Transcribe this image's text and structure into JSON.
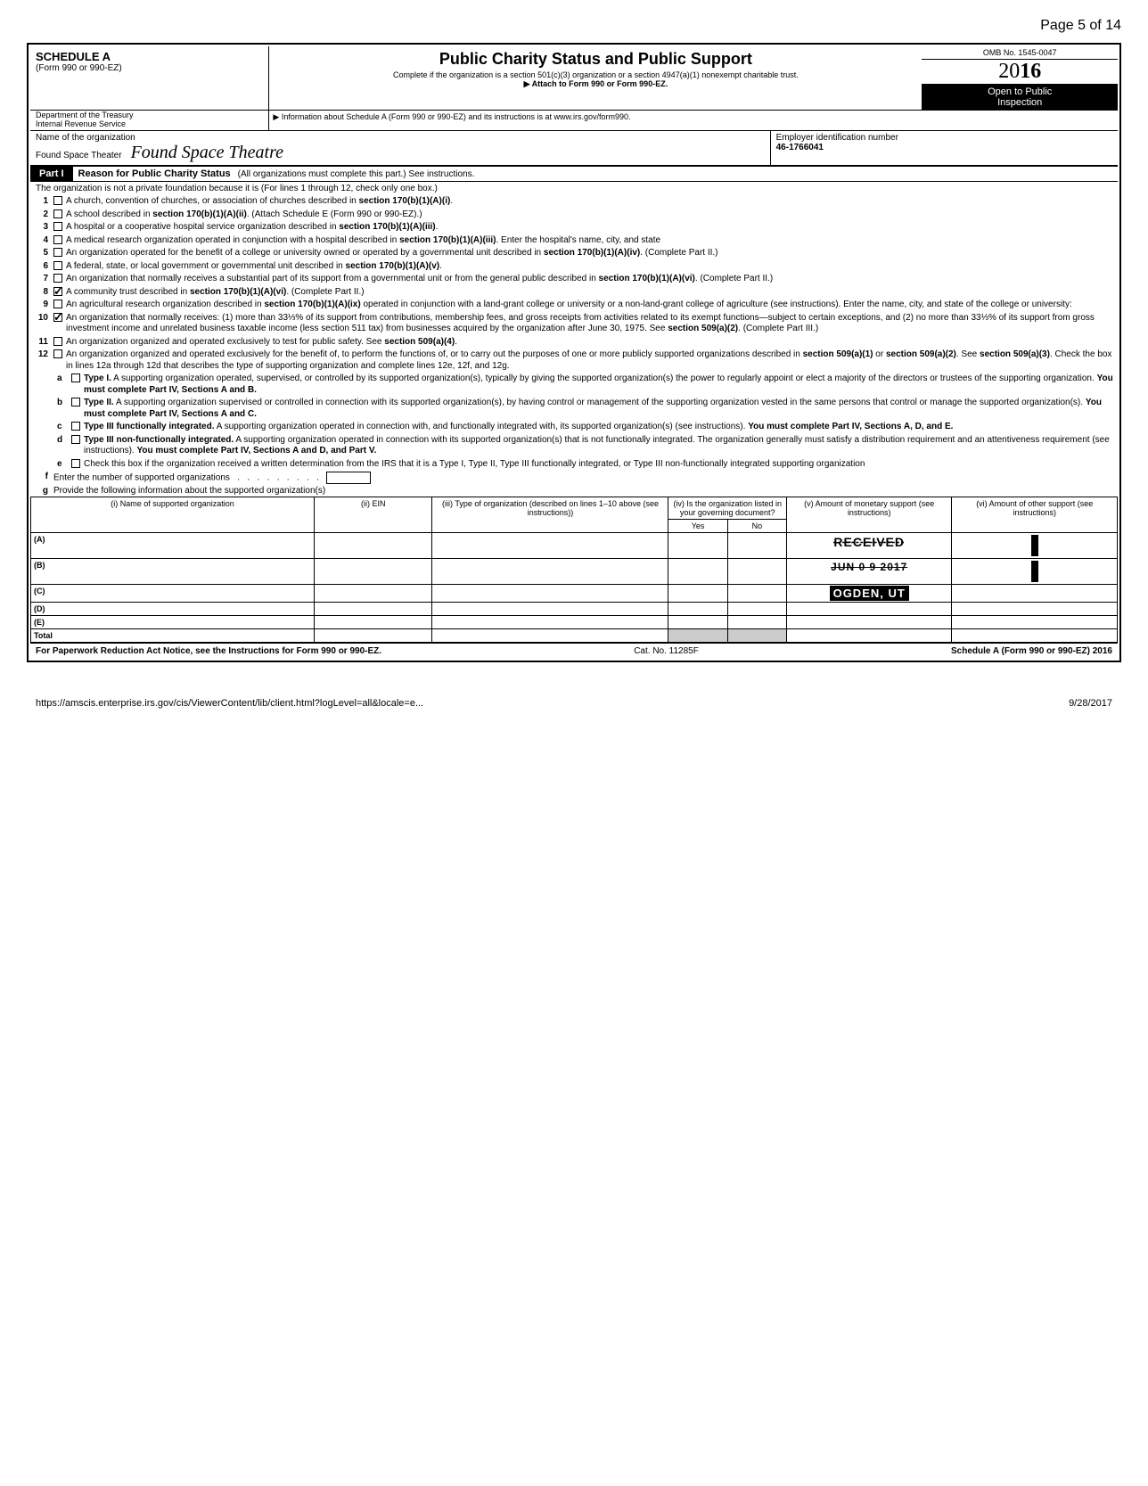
{
  "page_header": "Page 5 of 14",
  "form": {
    "schedule": "SCHEDULE A",
    "form_ref": "(Form 990 or 990-EZ)",
    "dept": "Department of the Treasury",
    "irs": "Internal Revenue Service",
    "title": "Public Charity Status and Public Support",
    "subtitle": "Complete if the organization is a section 501(c)(3) organization or a section 4947(a)(1) nonexempt charitable trust.",
    "attach": "▶ Attach to Form 990 or Form 990-EZ.",
    "info": "▶ Information about Schedule A (Form 990 or 990-EZ) and its instructions is at www.irs.gov/form990.",
    "omb": "OMB No. 1545-0047",
    "year_prefix": "20",
    "year_suffix": "16",
    "open": "Open to Public",
    "inspection": "Inspection"
  },
  "org": {
    "name_label": "Name of the organization",
    "name": "Found Space Theater",
    "handwritten": "Found Space Theatre",
    "ein_label": "Employer identification number",
    "ein": "46-1766041"
  },
  "part1": {
    "badge": "Part I",
    "title": "Reason for Public Charity Status",
    "sub": "(All organizations must complete this part.) See instructions.",
    "intro": "The organization is not a private foundation because it is  (For lines 1 through 12, check only one box.)"
  },
  "lines": [
    {
      "n": "1",
      "checked": false,
      "t": "A church, convention of churches, or association of churches described in section 170(b)(1)(A)(i)."
    },
    {
      "n": "2",
      "checked": false,
      "t": "A school described in section 170(b)(1)(A)(ii). (Attach Schedule E (Form 990 or 990-EZ).)"
    },
    {
      "n": "3",
      "checked": false,
      "t": "A hospital or a cooperative hospital service organization described in section 170(b)(1)(A)(iii)."
    },
    {
      "n": "4",
      "checked": false,
      "t": "A medical research organization operated in conjunction with a hospital described in section 170(b)(1)(A)(iii). Enter the hospital's name, city, and state"
    },
    {
      "n": "5",
      "checked": false,
      "t": "An organization operated for the benefit of a college or university owned or operated by a governmental unit described in section 170(b)(1)(A)(iv). (Complete Part II.)"
    },
    {
      "n": "6",
      "checked": false,
      "t": "A federal, state, or local government or governmental unit described in section 170(b)(1)(A)(v)."
    },
    {
      "n": "7",
      "checked": false,
      "t": "An organization that normally receives a substantial part of its support from a governmental unit or from the general public described in section 170(b)(1)(A)(vi). (Complete Part II.)"
    },
    {
      "n": "8",
      "checked": true,
      "t": "A community trust described in section 170(b)(1)(A)(vi). (Complete Part II.)"
    },
    {
      "n": "9",
      "checked": false,
      "t": "An agricultural research organization described in section 170(b)(1)(A)(ix) operated in conjunction with a land-grant college or university or a non-land-grant college of agriculture (see instructions). Enter the name, city, and state of the college or university:"
    },
    {
      "n": "10",
      "checked": true,
      "t": "An organization that normally receives: (1) more than 33⅓% of its support from contributions, membership fees, and gross receipts from activities related to its exempt functions—subject to certain exceptions, and (2) no more than 33⅓% of its support from gross investment income and unrelated business taxable income (less section 511 tax) from businesses acquired by the organization after June 30, 1975. See section 509(a)(2). (Complete Part III.)"
    },
    {
      "n": "11",
      "checked": false,
      "t": "An organization organized and operated exclusively to test for public safety. See section 509(a)(4)."
    },
    {
      "n": "12",
      "checked": false,
      "t": "An organization organized and operated exclusively for the benefit of, to perform the functions of, or to carry out the purposes of one or more publicly supported organizations described in section 509(a)(1) or section 509(a)(2). See section 509(a)(3). Check the box in lines 12a through 12d that describes the type of supporting organization and complete lines 12e, 12f, and 12g."
    }
  ],
  "sublines": [
    {
      "n": "a",
      "t": "Type I. A supporting organization operated, supervised, or controlled by its supported organization(s), typically by giving the supported organization(s) the power to regularly appoint or elect a majority of the directors or trustees of the supporting organization. You must complete Part IV, Sections A and B."
    },
    {
      "n": "b",
      "t": "Type II. A supporting organization supervised or controlled in connection with its supported organization(s), by having control or management of the supporting organization vested in the same persons that control or manage the supported organization(s). You must complete Part IV, Sections A and C."
    },
    {
      "n": "c",
      "t": "Type III functionally integrated. A supporting organization operated in connection with, and functionally integrated with, its supported organization(s) (see instructions). You must complete Part IV, Sections A, D, and E."
    },
    {
      "n": "d",
      "t": "Type III non-functionally integrated. A supporting organization operated in connection with its supported organization(s) that is not functionally integrated. The organization generally must satisfy a distribution requirement and an attentiveness requirement (see instructions). You must complete Part IV, Sections A and D, and Part V."
    },
    {
      "n": "e",
      "t": "Check this box if the organization received a written determination from the IRS that it is a Type I, Type II, Type III functionally integrated, or Type III non-functionally integrated supporting organization"
    }
  ],
  "line_f": "Enter the number of supported organizations",
  "line_g": "Provide the following information about the supported organization(s)",
  "table": {
    "headers": {
      "a": "(i) Name of supported organization",
      "b": "(ii) EIN",
      "c": "(iii) Type of organization (described on lines 1–10 above (see instructions))",
      "d": "(iv) Is the organization listed in your governing document?",
      "yes": "Yes",
      "no": "No",
      "e": "(v) Amount of monetary support (see instructions)",
      "f": "(vi) Amount of other support (see instructions)"
    },
    "rows": [
      "(A)",
      "(B)",
      "(C)",
      "(D)",
      "(E)"
    ],
    "total": "Total",
    "stamp_received": "RECEIVED",
    "stamp_date": "JUN 0 9 2017",
    "stamp_ogden": "OGDEN, UT"
  },
  "bottom": {
    "paperwork": "For Paperwork Reduction Act Notice, see the Instructions for Form 990 or 990-EZ.",
    "cat": "Cat. No. 11285F",
    "sched": "Schedule A (Form 990 or 990-EZ) 2016"
  },
  "footer": {
    "url": "https://amscis.enterprise.irs.gov/cis/ViewerContent/lib/client.html?logLevel=all&locale=e...",
    "date": "9/28/2017"
  }
}
